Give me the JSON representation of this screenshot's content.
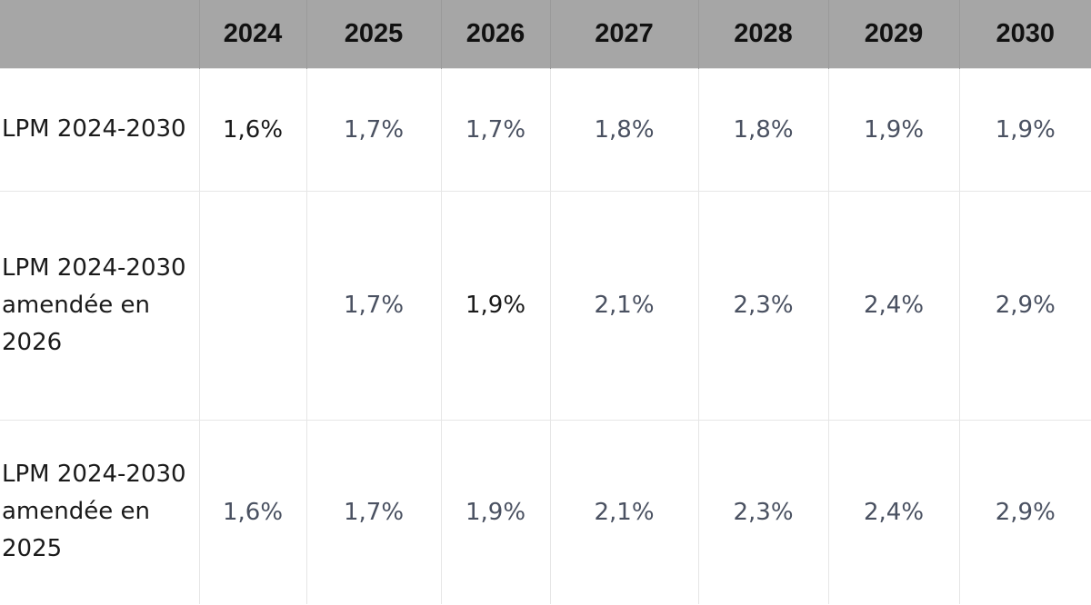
{
  "table": {
    "headers": [
      "",
      "2024",
      "2025",
      "2026",
      "2027",
      "2028",
      "2029",
      "2030"
    ],
    "rows": [
      {
        "label": "LPM 2024-2030",
        "values": [
          "1,6%",
          "1,7%",
          "1,7%",
          "1,8%",
          "1,8%",
          "1,9%",
          "1,9%"
        ]
      },
      {
        "label": "LPM 2024-2030 amendée en 2026",
        "values": [
          "",
          "1,7%",
          "1,9%",
          "2,1%",
          "2,3%",
          "2,4%",
          "2,9%"
        ]
      },
      {
        "label": "LPM 2024-2030 amendée en 2025",
        "values": [
          "1,6%",
          "1,7%",
          "1,9%",
          "2,1%",
          "2,3%",
          "2,4%",
          "2,9%"
        ]
      }
    ]
  },
  "colors": {
    "header_bg": "#a6a6a6",
    "value_text": "#4a5161",
    "dark_text": "#1a1a1a",
    "grid": "#e6e6e6"
  }
}
